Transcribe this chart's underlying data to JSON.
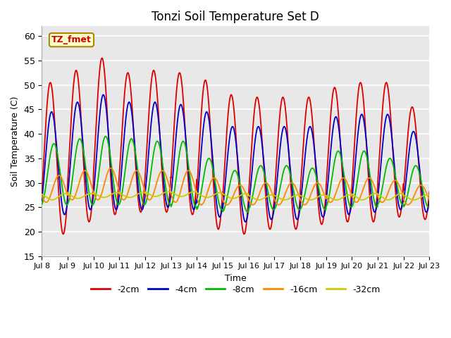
{
  "title": "Tonzi Soil Temperature Set D",
  "xlabel": "Time",
  "ylabel": "Soil Temperature (C)",
  "ylim": [
    15,
    62
  ],
  "yticks": [
    15,
    20,
    25,
    30,
    35,
    40,
    45,
    50,
    55,
    60
  ],
  "x_tick_labels": [
    "Jul 8",
    "Jul 9",
    "Jul 10",
    "Jul 11",
    "Jul 12",
    "Jul 13",
    "Jul 14",
    "Jul 15",
    "Jul 16",
    "Jul 17",
    "Jul 18",
    "Jul 19",
    "Jul 20",
    "Jul 21",
    "Jul 22",
    "Jul 23"
  ],
  "label_box_text": "TZ_fmet",
  "label_box_facecolor": "#ffffcc",
  "label_box_edgecolor": "#aa8800",
  "series_colors": [
    "#dd0000",
    "#0000cc",
    "#00bb00",
    "#ff8800",
    "#cccc00"
  ],
  "series_labels": [
    "-2cm",
    "-4cm",
    "-8cm",
    "-16cm",
    "-32cm"
  ],
  "bg_color": "#e8e8e8",
  "grid_color": "#ffffff",
  "peak_2cm": [
    50.5,
    53.0,
    55.5,
    52.5,
    53.0,
    52.5,
    51.0,
    48.0,
    47.5,
    47.5,
    47.5,
    49.5,
    50.5,
    50.5,
    45.5
  ],
  "trough_2cm": [
    19.5,
    22.0,
    23.5,
    24.0,
    24.0,
    23.5,
    20.5,
    19.5,
    20.5,
    20.5,
    21.5,
    22.0,
    22.0,
    23.0,
    22.5
  ],
  "peak_4cm": [
    44.5,
    46.5,
    48.0,
    46.5,
    46.5,
    46.0,
    44.5,
    41.5,
    41.5,
    41.5,
    41.5,
    43.5,
    44.0,
    44.0,
    40.5
  ],
  "trough_4cm": [
    23.5,
    24.5,
    24.5,
    24.5,
    25.0,
    24.5,
    23.0,
    22.0,
    22.5,
    22.5,
    23.0,
    23.5,
    24.0,
    24.5,
    24.0
  ],
  "peak_8cm": [
    38.0,
    39.0,
    39.5,
    39.0,
    38.5,
    38.5,
    35.0,
    32.5,
    33.5,
    33.5,
    33.0,
    36.5,
    36.5,
    35.0,
    33.5
  ],
  "trough_8cm": [
    25.5,
    25.5,
    25.5,
    25.5,
    25.5,
    25.0,
    24.5,
    24.0,
    24.5,
    24.5,
    24.5,
    25.0,
    25.0,
    25.5,
    25.0
  ],
  "peak_16cm": [
    31.5,
    32.5,
    33.0,
    32.5,
    32.5,
    32.5,
    31.0,
    29.5,
    30.0,
    30.0,
    30.0,
    31.0,
    31.0,
    30.5,
    29.5
  ],
  "trough_16cm": [
    26.0,
    26.5,
    26.5,
    26.5,
    26.5,
    26.0,
    25.5,
    25.5,
    25.5,
    25.5,
    25.5,
    26.0,
    26.0,
    26.0,
    25.5
  ],
  "peak_32cm": [
    27.8,
    27.8,
    28.0,
    28.0,
    28.2,
    28.2,
    28.0,
    27.8,
    27.5,
    27.5,
    27.5,
    27.5,
    27.8,
    27.8,
    27.5
  ],
  "trough_32cm": [
    26.5,
    26.8,
    27.0,
    27.0,
    27.2,
    27.2,
    27.0,
    26.8,
    26.5,
    26.5,
    26.5,
    26.5,
    26.5,
    26.5,
    26.5
  ],
  "phase_offsets": [
    0.08,
    0.13,
    0.22,
    0.42,
    0.65
  ]
}
